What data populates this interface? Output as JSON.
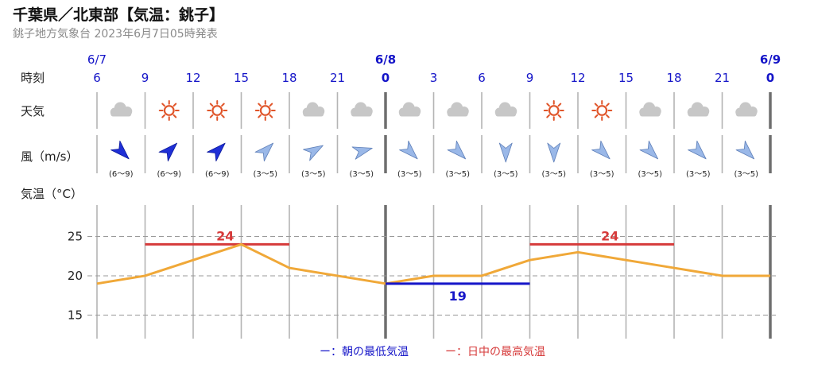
{
  "header": {
    "title": "千葉県／北東部【気温：銚子】",
    "subtitle": "銚子地方気象台 2023年6月7日05時発表"
  },
  "row_labels": {
    "time": "時刻",
    "weather": "天気",
    "wind": "風（m/s）",
    "temp": "気温（°C）"
  },
  "dates": [
    {
      "label": "6/7",
      "at_index": 0
    },
    {
      "label": "6/8",
      "at_index": 6
    },
    {
      "label": "6/9",
      "at_index": 14
    }
  ],
  "hours": [
    "6",
    "9",
    "12",
    "15",
    "18",
    "21",
    "0",
    "3",
    "6",
    "9",
    "12",
    "15",
    "18",
    "21",
    "0"
  ],
  "weather": [
    "cloudy",
    "sunny",
    "sunny",
    "sunny",
    "cloudy",
    "cloudy",
    "cloudy",
    "cloudy",
    "cloudy",
    "sunny",
    "sunny",
    "cloudy",
    "cloudy",
    "cloudy"
  ],
  "wind": {
    "directions_deg": [
      135,
      45,
      45,
      45,
      60,
      75,
      135,
      135,
      180,
      180,
      135,
      135,
      135,
      135
    ],
    "speeds": [
      "(6〜9)",
      "(6〜9)",
      "(6〜9)",
      "(3〜5)",
      "(3〜5)",
      "(3〜5)",
      "(3〜5)",
      "(3〜5)",
      "(3〜5)",
      "(3〜5)",
      "(3〜5)",
      "(3〜5)",
      "(3〜5)",
      "(3〜5)"
    ],
    "strong_color": "#1f2fd6",
    "weak_color": "#9ab8e8"
  },
  "chart_data": {
    "type": "line",
    "x": [
      "6/7 6時",
      "6/7 9時",
      "6/7 12時",
      "6/7 15時",
      "6/7 18時",
      "6/7 21時",
      "6/8 0時",
      "6/8 3時",
      "6/8 6時",
      "6/8 9時",
      "6/8 12時",
      "6/8 15時",
      "6/8 18時",
      "6/8 21時",
      "6/9 0時"
    ],
    "series": [
      {
        "values": [
          19,
          20,
          22,
          24,
          21,
          20,
          19,
          20,
          20,
          22,
          23,
          22,
          21,
          20,
          20
        ],
        "color": "#f0a838"
      }
    ],
    "yticks": [
      15,
      20,
      25
    ],
    "ylim": [
      12,
      29
    ],
    "grid": true,
    "max_temps": [
      {
        "value": 24,
        "label": "24",
        "from_index": 1,
        "to_index": 4,
        "color": "#d63a3a"
      },
      {
        "value": 24,
        "label": "24",
        "from_index": 9,
        "to_index": 12,
        "color": "#d63a3a"
      }
    ],
    "min_temps": [
      {
        "value": 19,
        "label": "19",
        "from_index": 6,
        "to_index": 9,
        "color": "#1515c8"
      }
    ],
    "legend": [
      {
        "label": "ー：朝の最低気温",
        "color": "#1515c8"
      },
      {
        "label": "ー：日中の最高気温",
        "color": "#d63a3a"
      }
    ],
    "legend_position": "bottom"
  }
}
